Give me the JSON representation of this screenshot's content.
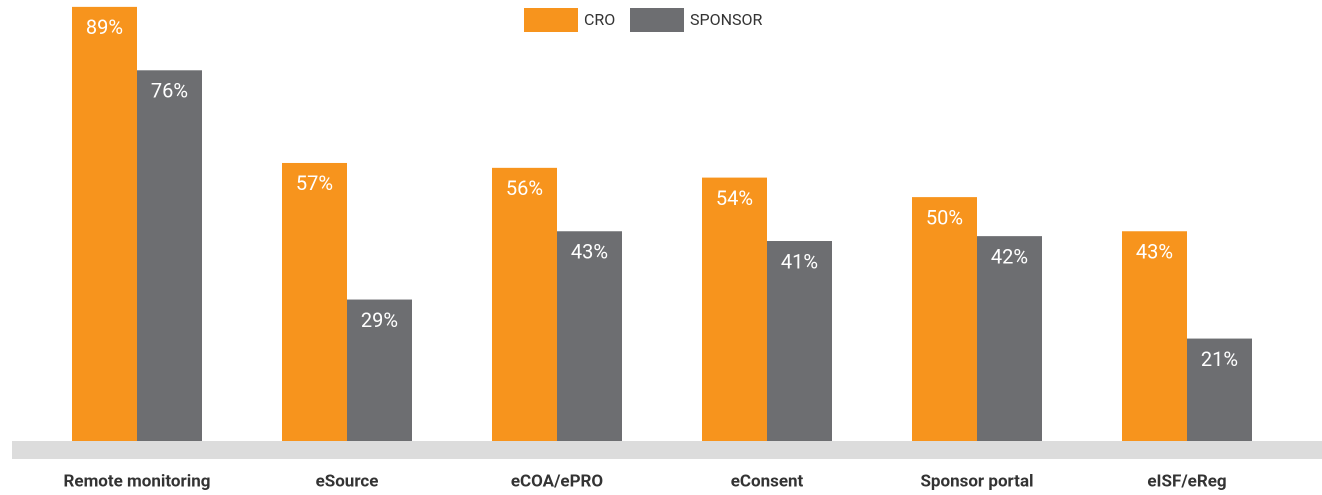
{
  "chart_data": {
    "type": "bar",
    "categories": [
      "Remote monitoring",
      "eSource",
      "eCOA/ePRO",
      "eConsent",
      "Sponsor portal",
      "eISF/eReg"
    ],
    "series": [
      {
        "name": "CRO",
        "color": "#f7941d",
        "values": [
          89,
          57,
          56,
          54,
          50,
          43
        ],
        "value_labels": [
          "89%",
          "57%",
          "56%",
          "54%",
          "50%",
          "43%"
        ]
      },
      {
        "name": "SPONSOR",
        "color": "#6d6e71",
        "values": [
          76,
          29,
          43,
          41,
          42,
          21
        ],
        "value_labels": [
          "76%",
          "29%",
          "43%",
          "41%",
          "42%",
          "21%"
        ]
      }
    ],
    "ylim": [
      0,
      90
    ],
    "legend": "top"
  }
}
